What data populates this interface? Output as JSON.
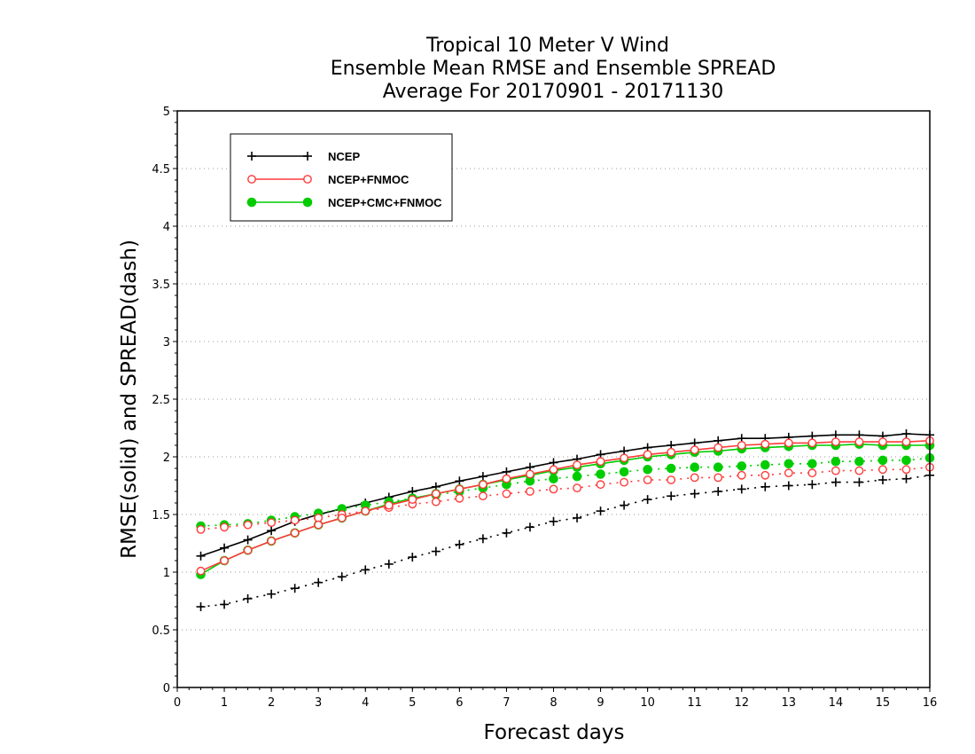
{
  "chart_data": {
    "type": "line",
    "title_lines": [
      "Tropical 10 Meter V Wind",
      "Ensemble Mean RMSE and Ensemble SPREAD",
      "Average For 20170901 - 20171130"
    ],
    "xlabel": "Forecast days",
    "ylabel": "RMSE(solid) and SPREAD(dash)",
    "xlim": [
      0,
      16
    ],
    "ylim": [
      0,
      5
    ],
    "x_ticks": [
      0,
      1,
      2,
      3,
      4,
      5,
      6,
      7,
      8,
      9,
      10,
      11,
      12,
      13,
      14,
      15,
      16
    ],
    "y_ticks": [
      0,
      0.5,
      1,
      1.5,
      2,
      2.5,
      3,
      3.5,
      4,
      4.5,
      5
    ],
    "grid": "horizontal dotted",
    "legend_position": "top-left",
    "x": [
      0.5,
      1,
      1.5,
      2,
      2.5,
      3,
      3.5,
      4,
      4.5,
      5,
      5.5,
      6,
      6.5,
      7,
      7.5,
      8,
      8.5,
      9,
      9.5,
      10,
      10.5,
      11,
      11.5,
      12,
      12.5,
      13,
      13.5,
      14,
      14.5,
      15,
      15.5,
      16
    ],
    "series": [
      {
        "name": "NCEP",
        "color": "#000000",
        "marker": "plus",
        "rmse": [
          1.14,
          1.21,
          1.28,
          1.36,
          1.44,
          1.5,
          1.55,
          1.6,
          1.65,
          1.7,
          1.74,
          1.79,
          1.83,
          1.87,
          1.91,
          1.95,
          1.98,
          2.02,
          2.05,
          2.08,
          2.1,
          2.12,
          2.14,
          2.16,
          2.16,
          2.17,
          2.18,
          2.19,
          2.19,
          2.18,
          2.2,
          2.19
        ],
        "spread": [
          0.7,
          0.72,
          0.77,
          0.81,
          0.86,
          0.91,
          0.96,
          1.02,
          1.07,
          1.13,
          1.18,
          1.24,
          1.29,
          1.34,
          1.39,
          1.44,
          1.47,
          1.53,
          1.58,
          1.63,
          1.66,
          1.68,
          1.7,
          1.72,
          1.74,
          1.75,
          1.76,
          1.78,
          1.78,
          1.8,
          1.81,
          1.84
        ]
      },
      {
        "name": "NCEP+FNMOC",
        "color": "#ff3b3b",
        "marker": "open-circle",
        "rmse": [
          1.01,
          1.1,
          1.19,
          1.27,
          1.34,
          1.41,
          1.47,
          1.53,
          1.58,
          1.63,
          1.68,
          1.72,
          1.76,
          1.81,
          1.85,
          1.89,
          1.93,
          1.96,
          1.99,
          2.02,
          2.04,
          2.06,
          2.08,
          2.1,
          2.11,
          2.12,
          2.12,
          2.13,
          2.13,
          2.13,
          2.13,
          2.14
        ],
        "spread": [
          1.37,
          1.39,
          1.41,
          1.43,
          1.45,
          1.47,
          1.5,
          1.53,
          1.56,
          1.59,
          1.61,
          1.64,
          1.66,
          1.68,
          1.7,
          1.72,
          1.73,
          1.76,
          1.78,
          1.8,
          1.8,
          1.82,
          1.82,
          1.84,
          1.84,
          1.86,
          1.86,
          1.88,
          1.88,
          1.89,
          1.89,
          1.91
        ]
      },
      {
        "name": "NCEP+CMC+FNMOC",
        "color": "#00cc00",
        "marker": "filled-circle",
        "rmse": [
          0.98,
          1.1,
          1.19,
          1.27,
          1.34,
          1.41,
          1.47,
          1.53,
          1.59,
          1.64,
          1.68,
          1.72,
          1.76,
          1.8,
          1.84,
          1.88,
          1.91,
          1.94,
          1.97,
          2.0,
          2.02,
          2.04,
          2.05,
          2.07,
          2.08,
          2.09,
          2.1,
          2.1,
          2.11,
          2.1,
          2.1,
          2.1
        ],
        "spread": [
          1.4,
          1.41,
          1.42,
          1.45,
          1.48,
          1.51,
          1.55,
          1.58,
          1.61,
          1.64,
          1.67,
          1.7,
          1.73,
          1.76,
          1.79,
          1.81,
          1.83,
          1.85,
          1.87,
          1.89,
          1.9,
          1.91,
          1.91,
          1.92,
          1.93,
          1.94,
          1.94,
          1.96,
          1.96,
          1.97,
          1.97,
          1.99
        ]
      }
    ]
  }
}
